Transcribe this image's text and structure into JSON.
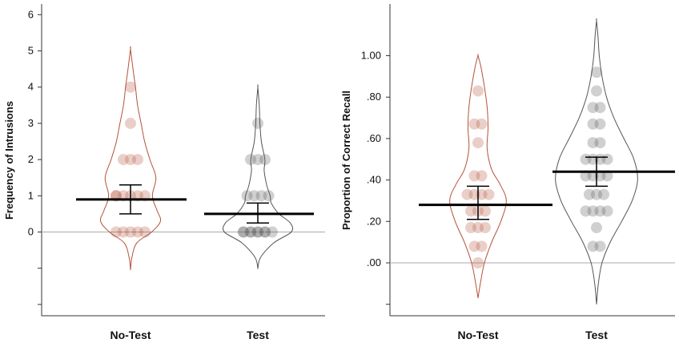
{
  "colors": {
    "no_test": "#b5523b",
    "test": "#555555",
    "axis": "#333333",
    "reference_line": "#aaaaaa",
    "background": "#ffffff"
  },
  "chart_data": [
    {
      "type": "violin",
      "title": "",
      "xlabel": "",
      "ylabel": "Frequency of Intrusions",
      "categories": [
        "No-Test",
        "Test"
      ],
      "y_ticks": [
        "0",
        "1",
        "2",
        "3",
        "4",
        "5",
        "6"
      ],
      "ylim": [
        -2.2,
        6.4
      ],
      "reference_line": 0,
      "grid": false,
      "series": [
        {
          "category": "No-Test",
          "mean": 0.9,
          "ci": [
            0.5,
            1.3
          ],
          "points": [
            4,
            3,
            2,
            2,
            2,
            1,
            1,
            1,
            1,
            1,
            1,
            0,
            0,
            0,
            0,
            0
          ],
          "violin": {
            "ymin": -1.05,
            "ymax": 5.05,
            "profile": [
              [
                -1.05,
                0
              ],
              [
                -0.7,
                0.04
              ],
              [
                -0.3,
                0.18
              ],
              [
                0,
                0.6
              ],
              [
                0.3,
                0.85
              ],
              [
                0.6,
                0.75
              ],
              [
                1,
                0.62
              ],
              [
                1.5,
                0.72
              ],
              [
                2,
                0.55
              ],
              [
                2.5,
                0.4
              ],
              [
                3,
                0.3
              ],
              [
                3.5,
                0.2
              ],
              [
                4,
                0.14
              ],
              [
                4.5,
                0.07
              ],
              [
                5.05,
                0
              ]
            ]
          }
        },
        {
          "category": "Test",
          "mean": 0.5,
          "ci": [
            0.25,
            0.8
          ],
          "points": [
            3,
            2,
            2,
            2,
            1,
            1,
            1,
            1,
            0,
            0,
            0,
            0,
            0,
            0,
            0,
            0,
            0
          ],
          "violin": {
            "ymin": -1.0,
            "ymax": 4.0,
            "profile": [
              [
                -1.0,
                0
              ],
              [
                -0.7,
                0.08
              ],
              [
                -0.3,
                0.45
              ],
              [
                0,
                0.95
              ],
              [
                0.25,
                0.92
              ],
              [
                0.5,
                0.6
              ],
              [
                0.8,
                0.38
              ],
              [
                1,
                0.35
              ],
              [
                1.3,
                0.25
              ],
              [
                1.7,
                0.18
              ],
              [
                2,
                0.2
              ],
              [
                2.5,
                0.1
              ],
              [
                3,
                0.06
              ],
              [
                3.5,
                0.04
              ],
              [
                4.0,
                0
              ]
            ]
          }
        }
      ]
    },
    {
      "type": "violin",
      "title": "",
      "xlabel": "",
      "ylabel": "Proportion of Correct Recall",
      "categories": [
        "No-Test",
        "Test"
      ],
      "y_ticks": [
        ".00",
        ".20",
        ".40",
        ".60",
        ".80",
        "1.00"
      ],
      "ylim": [
        -0.21,
        1.23
      ],
      "reference_line": 0,
      "grid": false,
      "series": [
        {
          "category": "No-Test",
          "mean": 0.28,
          "ci": [
            0.21,
            0.37
          ],
          "points": [
            0.83,
            0.67,
            0.67,
            0.58,
            0.42,
            0.42,
            0.33,
            0.33,
            0.33,
            0.33,
            0.25,
            0.25,
            0.25,
            0.17,
            0.17,
            0.17,
            0.08,
            0.08,
            0.0
          ],
          "violin": {
            "ymin": -0.17,
            "ymax": 1.0,
            "profile": [
              [
                -0.17,
                0
              ],
              [
                -0.1,
                0.05
              ],
              [
                0,
                0.14
              ],
              [
                0.1,
                0.3
              ],
              [
                0.2,
                0.5
              ],
              [
                0.3,
                0.62
              ],
              [
                0.38,
                0.48
              ],
              [
                0.45,
                0.3
              ],
              [
                0.55,
                0.2
              ],
              [
                0.65,
                0.22
              ],
              [
                0.75,
                0.2
              ],
              [
                0.85,
                0.14
              ],
              [
                0.95,
                0.06
              ],
              [
                1.0,
                0
              ]
            ]
          }
        },
        {
          "category": "Test",
          "mean": 0.44,
          "ci": [
            0.37,
            0.51
          ],
          "points": [
            0.92,
            0.83,
            0.75,
            0.75,
            0.67,
            0.67,
            0.58,
            0.58,
            0.5,
            0.5,
            0.5,
            0.5,
            0.42,
            0.42,
            0.42,
            0.42,
            0.33,
            0.33,
            0.33,
            0.25,
            0.25,
            0.25,
            0.25,
            0.17,
            0.08,
            0.08
          ],
          "violin": {
            "ymin": -0.2,
            "ymax": 1.17,
            "profile": [
              [
                -0.2,
                0
              ],
              [
                -0.1,
                0.04
              ],
              [
                0,
                0.12
              ],
              [
                0.1,
                0.3
              ],
              [
                0.2,
                0.55
              ],
              [
                0.3,
                0.78
              ],
              [
                0.4,
                0.9
              ],
              [
                0.5,
                0.82
              ],
              [
                0.6,
                0.6
              ],
              [
                0.7,
                0.38
              ],
              [
                0.8,
                0.22
              ],
              [
                0.9,
                0.12
              ],
              [
                1.0,
                0.06
              ],
              [
                1.1,
                0.03
              ],
              [
                1.17,
                0
              ]
            ]
          }
        }
      ]
    }
  ]
}
